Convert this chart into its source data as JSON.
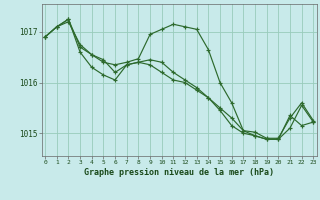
{
  "title": "Graphe pression niveau de la mer (hPa)",
  "background_color": "#c8eaea",
  "grid_color": "#99ccbb",
  "line_color": "#2d6a2d",
  "hours": [
    0,
    1,
    2,
    3,
    4,
    5,
    6,
    7,
    8,
    9,
    10,
    11,
    12,
    13,
    14,
    15,
    16,
    17,
    18,
    19,
    20,
    21,
    22,
    23
  ],
  "series1": [
    1016.9,
    1017.1,
    1017.2,
    1016.75,
    1016.55,
    1016.45,
    1016.2,
    1016.35,
    1016.4,
    1016.35,
    1016.2,
    1016.05,
    1016.0,
    1015.85,
    1015.7,
    1015.5,
    1015.3,
    1015.05,
    1014.95,
    1014.88,
    1014.88,
    1015.35,
    1015.15,
    1015.22
  ],
  "series2": [
    1016.9,
    1017.1,
    1017.25,
    1016.6,
    1016.3,
    1016.15,
    1016.05,
    1016.35,
    1016.4,
    1016.45,
    1016.4,
    1016.2,
    1016.05,
    1015.9,
    1015.7,
    1015.45,
    1015.15,
    1015.0,
    1014.95,
    1014.88,
    1014.88,
    1015.1,
    1015.55,
    1015.22
  ],
  "series3": [
    1016.9,
    1017.1,
    1017.25,
    1016.7,
    1016.55,
    1016.4,
    1016.35,
    1016.4,
    1016.47,
    1016.95,
    1017.05,
    1017.15,
    1017.1,
    1017.05,
    1016.65,
    1016.0,
    1015.6,
    1015.05,
    1015.02,
    1014.9,
    1014.9,
    1015.3,
    1015.6,
    1015.25
  ],
  "yticks": [
    1015.0,
    1016.0,
    1017.0
  ],
  "ylim": [
    1014.55,
    1017.55
  ],
  "xlim": [
    -0.3,
    23.3
  ]
}
